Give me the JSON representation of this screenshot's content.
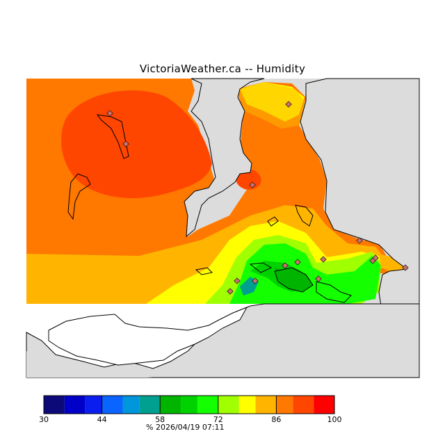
{
  "title": "VictoriaWeather.ca -- Humidity",
  "map": {
    "variable": "Humidity",
    "unit": "%",
    "timestamp": "2026/04/19 07:11",
    "colors": {
      "land_bg": "#dcdcdc",
      "water": "#ffffff",
      "coast": "#000000",
      "station": "#c77070"
    }
  },
  "colorbar": {
    "unit_label": "%",
    "min": 30,
    "max": 100,
    "tick_labels": [
      "30",
      "44",
      "58",
      "72",
      "86",
      "100"
    ],
    "tick_values": [
      30,
      44,
      58,
      72,
      86,
      100
    ],
    "bins": [
      {
        "from": 30,
        "to": 35,
        "color": "#0c0a78"
      },
      {
        "from": 35,
        "to": 40,
        "color": "#0000c8"
      },
      {
        "from": 40,
        "to": 44,
        "color": "#0a1ef0"
      },
      {
        "from": 44,
        "to": 49,
        "color": "#0a64ff"
      },
      {
        "from": 49,
        "to": 53,
        "color": "#0096dc"
      },
      {
        "from": 53,
        "to": 58,
        "color": "#00a090"
      },
      {
        "from": 58,
        "to": 63,
        "color": "#00b400"
      },
      {
        "from": 63,
        "to": 67,
        "color": "#00d200"
      },
      {
        "from": 67,
        "to": 72,
        "color": "#14ff00"
      },
      {
        "from": 72,
        "to": 77,
        "color": "#a0ff00"
      },
      {
        "from": 77,
        "to": 81,
        "color": "#ffff00"
      },
      {
        "from": 81,
        "to": 86,
        "color": "#ffb400"
      },
      {
        "from": 86,
        "to": 90,
        "color": "#ff7800"
      },
      {
        "from": 90,
        "to": 95,
        "color": "#ff4600"
      },
      {
        "from": 95,
        "to": 100,
        "color": "#ff0000"
      }
    ]
  }
}
